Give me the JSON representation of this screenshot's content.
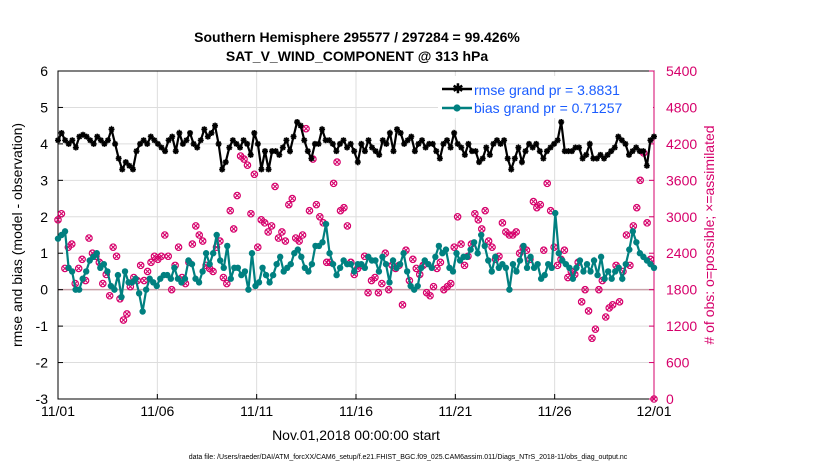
{
  "chart_data": {
    "type": "line",
    "title": "Southern Hemisphere 295577 / 297284 = 99.426%",
    "subtitle": "SAT_V_WIND_COMPONENT @ 313 hPa",
    "xlabel": "Nov.01,2018 00:00:00 start",
    "ylabel": "rmse and bias (model - observation)",
    "y2label": "# of obs: o=possible; ×=assimilated",
    "xlim": [
      0,
      30
    ],
    "ylim": [
      -3,
      6
    ],
    "y2lim": [
      0,
      5400
    ],
    "x_ticks": [
      0,
      5,
      10,
      15,
      20,
      25,
      30
    ],
    "x_tick_labels": [
      "11/01",
      "11/06",
      "11/11",
      "11/16",
      "11/21",
      "11/26",
      "12/01"
    ],
    "y_ticks": [
      -3,
      -2,
      -1,
      0,
      1,
      2,
      3,
      4,
      5,
      6
    ],
    "y_tick_labels": [
      "-3",
      "-2",
      "-1",
      "0",
      "1",
      "2",
      "3",
      "4",
      "5",
      "6"
    ],
    "y2_ticks": [
      0,
      600,
      1200,
      1800,
      2400,
      3000,
      3600,
      4200,
      4800,
      5400
    ],
    "y2_tick_labels": [
      "0",
      "600",
      "1200",
      "1800",
      "2400",
      "3000",
      "3600",
      "4200",
      "4800",
      "5400"
    ],
    "legend": {
      "position": "top-right",
      "entries": [
        "rmse grand pr = 3.8831",
        "bias grand pr = 0.71257"
      ]
    },
    "footnote": "data file: /Users/raeder/DAI/ATM_forcXX/CAM6_setup/f.e21.FHIST_BGC.f09_025.CAM6assim.011/Diags_NTrS_2018-11/obs_diag_output.nc",
    "colors": {
      "rmse": "#000000",
      "bias": "#008080",
      "obs": "#d6006b",
      "zero_line": "#c8a0a8",
      "grid": "#dddddd"
    },
    "rmse": [
      4.1,
      4.3,
      4.1,
      4.0,
      4.1,
      3.9,
      4.2,
      4.25,
      4.2,
      4.1,
      4.0,
      4.2,
      4.1,
      4.0,
      4.1,
      4.4,
      4.0,
      3.6,
      3.3,
      3.5,
      3.4,
      3.3,
      3.8,
      4.0,
      4.1,
      4.0,
      4.2,
      4.1,
      4.0,
      3.9,
      3.8,
      4.1,
      4.2,
      3.8,
      4.3,
      4.0,
      4.1,
      4.3,
      4.0,
      3.9,
      4.1,
      4.4,
      4.2,
      4.3,
      4.5,
      4.0,
      3.3,
      3.5,
      3.9,
      4.1,
      4.0,
      3.9,
      4.1,
      4.0,
      3.7,
      4.3,
      4.0,
      3.3,
      3.8,
      3.3,
      3.8,
      3.8,
      3.7,
      3.9,
      4.1,
      3.8,
      4.2,
      4.6,
      4.5,
      4.1,
      3.8,
      3.6,
      4.0,
      4.0,
      4.4,
      4.1,
      4.1,
      4.0,
      3.8,
      4.0,
      4.1,
      3.9,
      4.0,
      3.8,
      3.5,
      4.0,
      3.8,
      4.1,
      3.9,
      3.8,
      3.7,
      4.1,
      4.0,
      4.3,
      3.8,
      4.4,
      4.3,
      4.0,
      4.1,
      4.2,
      3.8,
      4.0,
      4.1,
      3.9,
      4.0,
      4.0,
      3.8,
      3.6,
      4.0,
      4.1,
      3.9,
      4.3,
      4.0,
      3.9,
      3.7,
      4.0,
      3.8,
      3.8,
      3.5,
      3.6,
      3.9,
      3.7,
      4.0,
      4.1,
      4.0,
      4.1,
      3.6,
      3.3,
      3.6,
      3.9,
      3.5,
      3.8,
      4.0,
      3.9,
      4.0,
      3.8,
      3.6,
      3.8,
      3.9,
      4.0,
      4.1,
      4.6,
      3.8,
      3.8,
      3.8,
      3.9,
      3.9,
      3.6,
      3.7,
      4.0,
      3.6,
      3.6,
      3.7,
      3.6,
      3.7,
      3.8,
      3.9,
      4.2,
      4.1,
      4.0,
      3.7,
      3.8,
      3.9,
      3.8,
      3.8,
      3.4,
      4.1,
      4.2
    ],
    "bias": [
      1.4,
      1.5,
      1.6,
      0.6,
      0.5,
      0.0,
      0.0,
      0.3,
      0.5,
      0.8,
      0.9,
      1.0,
      0.6,
      0.7,
      0.5,
      0.1,
      0.0,
      0.4,
      -0.2,
      0.5,
      0.2,
      0.2,
      0.3,
      -0.1,
      -0.6,
      0.0,
      0.3,
      0.2,
      0.1,
      0.3,
      0.4,
      0.4,
      0.3,
      0.6,
      0.3,
      0.2,
      0.3,
      0.8,
      0.7,
      0.3,
      0.2,
      0.5,
      1.0,
      0.7,
      1.0,
      1.5,
      0.8,
      0.6,
      1.2,
      0.3,
      0.6,
      0.6,
      0.4,
      0.5,
      0.0,
      1.0,
      0.1,
      0.2,
      0.6,
      0.4,
      0.2,
      0.4,
      0.7,
      0.9,
      0.5,
      0.6,
      0.7,
      1.0,
      1.1,
      0.9,
      0.6,
      0.5,
      0.7,
      1.2,
      1.2,
      1.3,
      1.8,
      1.0,
      0.7,
      0.4,
      0.6,
      0.8,
      0.7,
      0.7,
      0.5,
      0.7,
      0.7,
      0.6,
      0.9,
      0.8,
      0.8,
      0.5,
      0.9,
      0.7,
      0.2,
      0.8,
      0.6,
      0.7,
      1.0,
      0.5,
      0.1,
      0.0,
      0.1,
      0.6,
      0.8,
      0.7,
      0.6,
      0.9,
      1.2,
      1.0,
      1.1,
      0.6,
      0.5,
      1.0,
      0.8,
      0.9,
      0.9,
      1.1,
      1.3,
      1.0,
      1.5,
      1.2,
      0.8,
      0.5,
      0.9,
      0.6,
      0.7,
      0.6,
      0.0,
      0.7,
      0.5,
      0.8,
      1.2,
      0.6,
      0.9,
      0.6,
      0.7,
      0.3,
      0.4,
      0.7,
      0.6,
      2.1,
      1.0,
      0.8,
      0.7,
      0.6,
      0.3,
      0.6,
      0.8,
      0.5,
      0.7,
      0.5,
      0.8,
      0.4,
      0.9,
      0.3,
      0.5,
      0.3,
      0.5,
      0.6,
      0.3,
      0.7,
      1.1,
      1.6,
      1.3,
      1.0,
      0.9,
      0.8,
      0.7,
      0.6
    ],
    "obs_counts": [
      2950,
      3050,
      2150,
      2500,
      2550,
      1900,
      2150,
      2300,
      1950,
      2650,
      2400,
      2350,
      2250,
      1900,
      2050,
      1700,
      2500,
      2350,
      1650,
      1300,
      1400,
      1850,
      2000,
      1950,
      2200,
      1950,
      2100,
      2250,
      2350,
      2300,
      2350,
      2700,
      2350,
      1800,
      2200,
      2500,
      2000,
      1900,
      2250,
      2550,
      2850,
      2700,
      2600,
      2200,
      2150,
      2100,
      2500,
      2600,
      2000,
      1900,
      3100,
      2800,
      3350,
      4000,
      3950,
      3850,
      3050,
      3700,
      2500,
      2950,
      2900,
      2750,
      2850,
      3500,
      2650,
      2750,
      2600,
      3200,
      3300,
      2650,
      2600,
      2700,
      4450,
      3100,
      3950,
      3200,
      3000,
      2900,
      2250,
      2250,
      3550,
      3900,
      3100,
      3150,
      2850,
      2250,
      2050,
      2150,
      2200,
      2350,
      1750,
      1950,
      2000,
      1750,
      1900,
      2400,
      1800,
      2200,
      2150,
      2200,
      1550,
      2450,
      1950,
      2300,
      2150,
      2050,
      2200,
      1750,
      1700,
      1850,
      2150,
      2250,
      1800,
      1850,
      1900,
      2500,
      3000,
      2550,
      2200,
      2350,
      2550,
      3050,
      2950,
      2800,
      3100,
      2600,
      2500,
      2300,
      2350,
      2900,
      2750,
      2700,
      2700,
      2750,
      2400,
      2500,
      2450,
      2300,
      3250,
      3150,
      3200,
      2450,
      3550,
      3100,
      2500,
      2200,
      2300,
      2450,
      2000,
      2100,
      2050,
      2250,
      1600,
      1800,
      1450,
      1000,
      1150,
      1800,
      1950,
      1350,
      1500,
      1550,
      2200,
      1600,
      2100,
      2700,
      2200,
      2850,
      3150,
      3600,
      4050,
      2900,
      2300,
      0
    ]
  }
}
